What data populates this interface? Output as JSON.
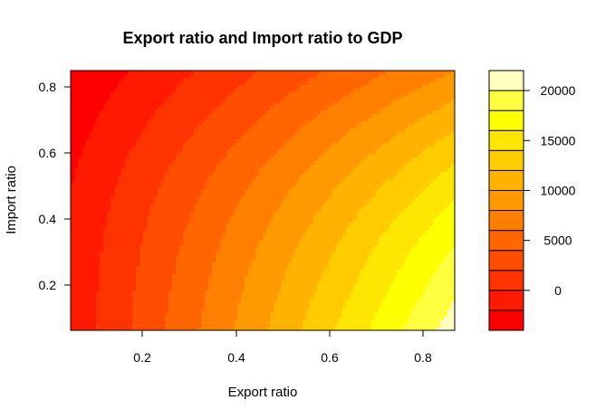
{
  "chart_data": {
    "type": "filled-contour",
    "title": "Export ratio and Import ratio to GDP",
    "xlabel": "Export ratio",
    "ylabel": "Import ratio",
    "xlim": [
      0.05,
      0.87
    ],
    "ylim": [
      0.065,
      0.85
    ],
    "x_ticks": [
      "0.2",
      "0.4",
      "0.6",
      "0.8"
    ],
    "y_ticks": [
      "0.2",
      "0.4",
      "0.6",
      "0.8"
    ],
    "legend": {
      "placement": "right",
      "levels": [
        -4000,
        -2000,
        0,
        2000,
        4000,
        6000,
        8000,
        10000,
        12000,
        14000,
        16000,
        18000,
        20000,
        22000
      ],
      "tick_labels": [
        "0",
        "5000",
        "10000",
        "15000",
        "20000"
      ],
      "colors": [
        "#ff0000",
        "#ff1a00",
        "#ff3300",
        "#ff4d00",
        "#ff6600",
        "#ff8000",
        "#ff9900",
        "#ffb300",
        "#ffcc00",
        "#ffe600",
        "#ffff00",
        "#ffff40",
        "#ffffbf"
      ]
    },
    "approx_values": {
      "bottom_left": -1500,
      "top_left": -3800,
      "top_right": 8000,
      "bottom_right": 21000
    },
    "grid": false
  }
}
